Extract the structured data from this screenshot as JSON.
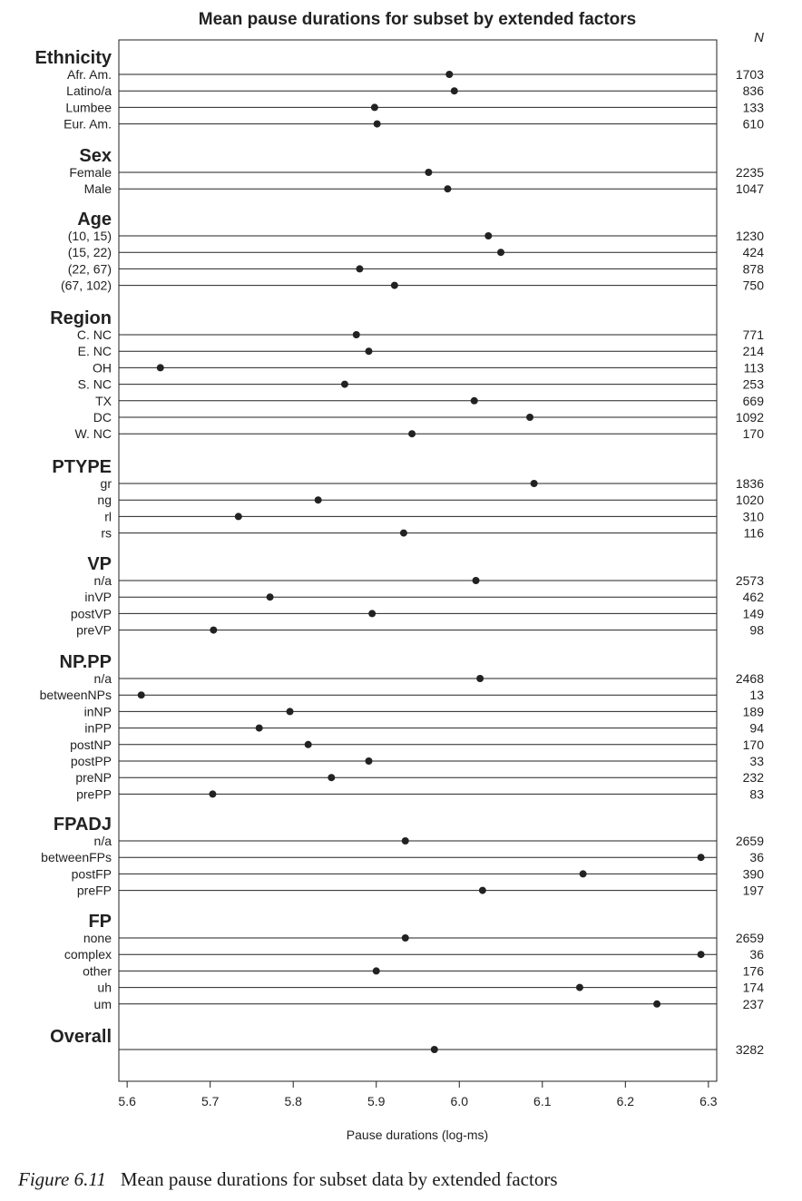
{
  "chart_data": {
    "type": "scatter",
    "subtype": "dot-plot",
    "title": "Mean pause durations for subset by extended factors",
    "xlabel": "Pause durations (log-ms)",
    "n_header": "N",
    "xlim": [
      5.59,
      6.31
    ],
    "xticks": [
      5.6,
      5.7,
      5.8,
      5.9,
      6.0,
      6.1,
      6.2,
      6.3
    ],
    "tick_labels": [
      "5.6",
      "5.7",
      "5.8",
      "5.9",
      "6.0",
      "6.1",
      "6.2",
      "6.3"
    ],
    "grid": false,
    "groups": [
      {
        "name": "Ethnicity",
        "rows": [
          {
            "label": "Afr. Am.",
            "value": 5.988,
            "n": "1703"
          },
          {
            "label": "Latino/a",
            "value": 5.994,
            "n": "836"
          },
          {
            "label": "Lumbee",
            "value": 5.898,
            "n": "133"
          },
          {
            "label": "Eur. Am.",
            "value": 5.901,
            "n": "610"
          }
        ]
      },
      {
        "name": "Sex",
        "rows": [
          {
            "label": "Female",
            "value": 5.963,
            "n": "2235"
          },
          {
            "label": "Male",
            "value": 5.986,
            "n": "1047"
          }
        ]
      },
      {
        "name": "Age",
        "rows": [
          {
            "label": "(10, 15)",
            "value": 6.035,
            "n": "1230"
          },
          {
            "label": "(15, 22)",
            "value": 6.05,
            "n": "424"
          },
          {
            "label": "(22, 67)",
            "value": 5.88,
            "n": "878"
          },
          {
            "label": "(67, 102)",
            "value": 5.922,
            "n": "750"
          }
        ]
      },
      {
        "name": "Region",
        "rows": [
          {
            "label": "C. NC",
            "value": 5.876,
            "n": "771"
          },
          {
            "label": "E. NC",
            "value": 5.891,
            "n": "214"
          },
          {
            "label": "OH",
            "value": 5.64,
            "n": "113"
          },
          {
            "label": "S. NC",
            "value": 5.862,
            "n": "253"
          },
          {
            "label": "TX",
            "value": 6.018,
            "n": "669"
          },
          {
            "label": "DC",
            "value": 6.085,
            "n": "1092"
          },
          {
            "label": "W. NC",
            "value": 5.943,
            "n": "170"
          }
        ]
      },
      {
        "name": "PTYPE",
        "rows": [
          {
            "label": "gr",
            "value": 6.09,
            "n": "1836"
          },
          {
            "label": "ng",
            "value": 5.83,
            "n": "1020"
          },
          {
            "label": "rl",
            "value": 5.734,
            "n": "310"
          },
          {
            "label": "rs",
            "value": 5.933,
            "n": "116"
          }
        ]
      },
      {
        "name": "VP",
        "rows": [
          {
            "label": "n/a",
            "value": 6.02,
            "n": "2573"
          },
          {
            "label": "inVP",
            "value": 5.772,
            "n": "462"
          },
          {
            "label": "postVP",
            "value": 5.895,
            "n": "149"
          },
          {
            "label": "preVP",
            "value": 5.704,
            "n": "98"
          }
        ]
      },
      {
        "name": "NP.PP",
        "rows": [
          {
            "label": "n/a",
            "value": 6.025,
            "n": "2468"
          },
          {
            "label": "betweenNPs",
            "value": 5.617,
            "n": "13"
          },
          {
            "label": "inNP",
            "value": 5.796,
            "n": "189"
          },
          {
            "label": "inPP",
            "value": 5.759,
            "n": "94"
          },
          {
            "label": "postNP",
            "value": 5.818,
            "n": "170"
          },
          {
            "label": "postPP",
            "value": 5.891,
            "n": "33"
          },
          {
            "label": "preNP",
            "value": 5.846,
            "n": "232"
          },
          {
            "label": "prePP",
            "value": 5.703,
            "n": "83"
          }
        ]
      },
      {
        "name": "FPADJ",
        "rows": [
          {
            "label": "n/a",
            "value": 5.935,
            "n": "2659"
          },
          {
            "label": "betweenFPs",
            "value": 6.291,
            "n": "36"
          },
          {
            "label": "postFP",
            "value": 6.149,
            "n": "390"
          },
          {
            "label": "preFP",
            "value": 6.028,
            "n": "197"
          }
        ]
      },
      {
        "name": "FP",
        "rows": [
          {
            "label": "none",
            "value": 5.935,
            "n": "2659"
          },
          {
            "label": "complex",
            "value": 6.291,
            "n": "36"
          },
          {
            "label": "other",
            "value": 5.9,
            "n": "176"
          },
          {
            "label": "uh",
            "value": 6.145,
            "n": "174"
          },
          {
            "label": "um",
            "value": 6.238,
            "n": "237"
          }
        ]
      },
      {
        "name": "Overall",
        "rows": [
          {
            "label": "",
            "value": 5.97,
            "n": "3282"
          }
        ]
      }
    ]
  },
  "caption": {
    "number": "Figure 6.11",
    "text": "Mean pause durations for subset data by extended factors"
  },
  "colors": {
    "ink": "#222222",
    "dot": "#222222"
  }
}
